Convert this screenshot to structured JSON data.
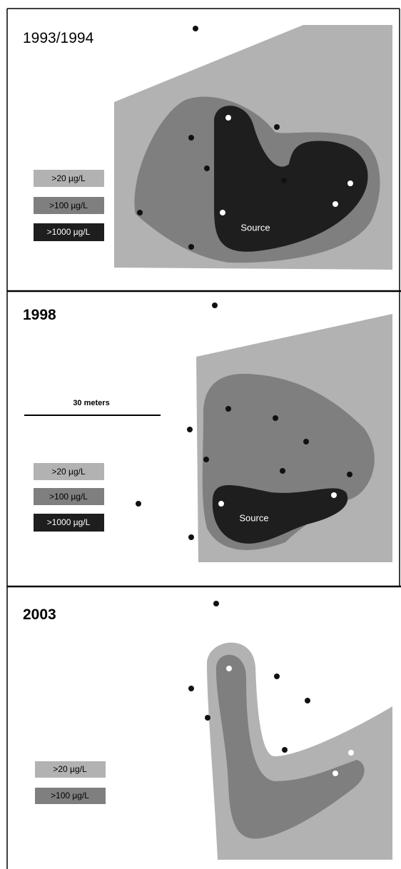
{
  "panels": [
    {
      "title": "1993/1994",
      "legend": [
        ">20  µg/L",
        ">100  µg/L",
        ">1000  µg/L"
      ],
      "source": "Source"
    },
    {
      "title": "1998",
      "scale": "30 meters",
      "legend": [
        ">20  µg/L",
        ">100  µg/L",
        ">1000  µg/L"
      ],
      "source": "Source"
    },
    {
      "title": "2003",
      "legend": [
        ">20 µg/L",
        ">100 µg/L"
      ]
    }
  ]
}
